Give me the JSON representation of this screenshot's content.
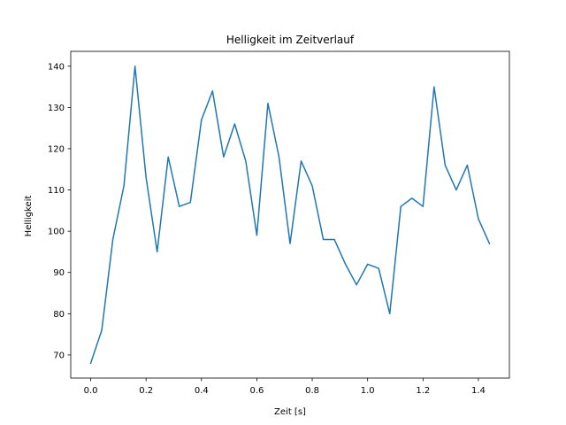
{
  "chart_data": {
    "type": "line",
    "title": "Helligkeit im Zeitverlauf",
    "xlabel": "Zeit [s]",
    "ylabel": "Helligkeit",
    "xlim": [
      -0.072,
      1.512
    ],
    "ylim": [
      64.4,
      143.6
    ],
    "xticks": [
      0.0,
      0.2,
      0.4,
      0.6,
      0.8,
      1.0,
      1.2,
      1.4
    ],
    "xtick_labels": [
      "0.0",
      "0.2",
      "0.4",
      "0.6",
      "0.8",
      "1.0",
      "1.2",
      "1.4"
    ],
    "yticks": [
      70,
      80,
      90,
      100,
      110,
      120,
      130,
      140
    ],
    "ytick_labels": [
      "70",
      "80",
      "90",
      "100",
      "110",
      "120",
      "130",
      "140"
    ],
    "grid": false,
    "line_color": "#1f77b4",
    "series": [
      {
        "x": [
          0.0,
          0.04,
          0.08,
          0.12,
          0.16,
          0.2,
          0.24,
          0.28,
          0.32,
          0.36,
          0.4,
          0.44,
          0.48,
          0.52,
          0.56,
          0.6,
          0.64,
          0.68,
          0.72,
          0.76,
          0.8,
          0.84,
          0.88,
          0.92,
          0.96,
          1.0,
          1.04,
          1.08,
          1.12,
          1.16,
          1.2,
          1.24,
          1.28,
          1.32,
          1.36,
          1.4,
          1.44
        ],
        "values": [
          68,
          76,
          98,
          111,
          140,
          113,
          95,
          118,
          106,
          107,
          127,
          134,
          118,
          126,
          117,
          99,
          131,
          118,
          97,
          117,
          111,
          98,
          98,
          92,
          87,
          92,
          91,
          80,
          106,
          108,
          106,
          135,
          116,
          110,
          116,
          103,
          97
        ]
      }
    ]
  }
}
